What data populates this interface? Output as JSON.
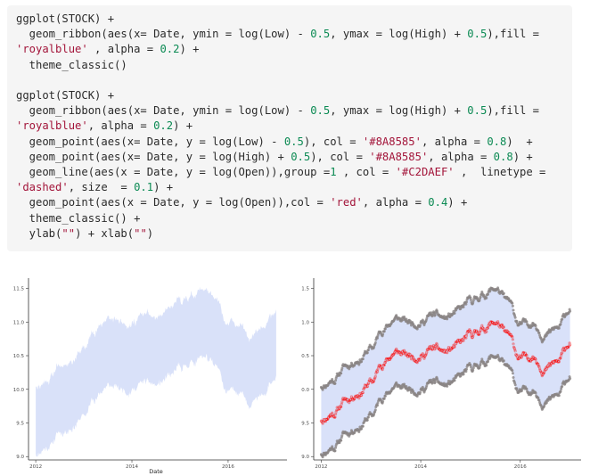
{
  "code": {
    "lines": [
      [
        [
          "t",
          "ggplot(STOCK) +"
        ]
      ],
      [
        [
          "t",
          "  geom_ribbon(aes(x= Date, ymin = log(Low) - "
        ],
        [
          "n",
          "0.5"
        ],
        [
          "t",
          ", ymax = log(High) + "
        ],
        [
          "n",
          "0.5"
        ],
        [
          "t",
          "),fill ="
        ]
      ],
      [
        [
          "s",
          "'royalblue'"
        ],
        [
          "t",
          " , alpha = "
        ],
        [
          "n",
          "0.2"
        ],
        [
          "t",
          ") +"
        ]
      ],
      [
        [
          "t",
          "  theme_classic()"
        ]
      ],
      [
        [
          "t",
          ""
        ]
      ],
      [
        [
          "t",
          "ggplot(STOCK) +"
        ]
      ],
      [
        [
          "t",
          "  geom_ribbon(aes(x= Date, ymin = log(Low) - "
        ],
        [
          "n",
          "0.5"
        ],
        [
          "t",
          ", ymax = log(High) + "
        ],
        [
          "n",
          "0.5"
        ],
        [
          "t",
          "),fill ="
        ]
      ],
      [
        [
          "s",
          "'royalblue'"
        ],
        [
          "t",
          ", alpha = "
        ],
        [
          "n",
          "0.2"
        ],
        [
          "t",
          ") +"
        ]
      ],
      [
        [
          "t",
          "  geom_point(aes(x= Date, y = log(Low) - "
        ],
        [
          "n",
          "0.5"
        ],
        [
          "t",
          "), col = "
        ],
        [
          "s",
          "'#8A8585'"
        ],
        [
          "t",
          ", alpha = "
        ],
        [
          "n",
          "0.8"
        ],
        [
          "t",
          ")  +"
        ]
      ],
      [
        [
          "t",
          "  geom_point(aes(x= Date, y = log(High) + "
        ],
        [
          "n",
          "0.5"
        ],
        [
          "t",
          "), col = "
        ],
        [
          "s",
          "'#8A8585'"
        ],
        [
          "t",
          ", alpha = "
        ],
        [
          "n",
          "0.8"
        ],
        [
          "t",
          ") +"
        ]
      ],
      [
        [
          "t",
          "  geom_line(aes(x = Date, y = log(Open)),group ="
        ],
        [
          "n",
          "1"
        ],
        [
          "t",
          " , col = "
        ],
        [
          "s",
          "'#C2DAEF'"
        ],
        [
          "t",
          " ,  linetype ="
        ]
      ],
      [
        [
          "s",
          "'dashed'"
        ],
        [
          "t",
          ", size  = "
        ],
        [
          "n",
          "0.1"
        ],
        [
          "t",
          ") +"
        ]
      ],
      [
        [
          "t",
          "  geom_point(aes(x = Date, y = log(Open)),col = "
        ],
        [
          "s",
          "'red'"
        ],
        [
          "t",
          ", alpha = "
        ],
        [
          "n",
          "0.4"
        ],
        [
          "t",
          ") +"
        ]
      ],
      [
        [
          "t",
          "  theme_classic() +"
        ]
      ],
      [
        [
          "t",
          "  ylab("
        ],
        [
          "s",
          "\"\""
        ],
        [
          "t",
          ") + xlab("
        ],
        [
          "s",
          "\"\""
        ],
        [
          "t",
          ")"
        ]
      ]
    ]
  },
  "plots": {
    "y_tick_labels": [
      "9.0",
      "9.5",
      "10.0",
      "10.5",
      "11.0",
      "11.5"
    ],
    "x_tick_labels": [
      "2012",
      "2014",
      "2016"
    ],
    "left_xlabel": "Date",
    "ribbon_color": "#4169e1",
    "ribbon_alpha": 0.2,
    "band_point_color": "#8A8585",
    "open_point_color": "#ff0000",
    "open_line_color": "#C2DAEF"
  },
  "chart_data": [
    {
      "type": "area",
      "title": "",
      "xlabel": "Date",
      "ylabel": "",
      "xlim": [
        2011.85,
        2017.15
      ],
      "ylim": [
        8.95,
        11.6
      ],
      "x": [
        2012.0,
        2012.25,
        2012.5,
        2012.75,
        2013.0,
        2013.25,
        2013.5,
        2013.75,
        2014.0,
        2014.25,
        2014.5,
        2014.75,
        2015.0,
        2015.25,
        2015.5,
        2015.75,
        2016.0,
        2016.25,
        2016.5,
        2016.75,
        2017.0
      ],
      "series": [
        {
          "values_low": [
            9.05,
            9.15,
            9.35,
            9.45,
            9.6,
            9.9,
            10.05,
            10.0,
            10.0,
            10.1,
            10.05,
            10.15,
            10.3,
            10.4,
            10.5,
            10.3,
            9.95,
            10.0,
            9.8,
            9.9,
            10.2
          ]
        },
        {
          "values_high": [
            10.05,
            10.15,
            10.35,
            10.45,
            10.6,
            10.9,
            11.05,
            11.0,
            11.0,
            11.1,
            11.05,
            11.15,
            11.3,
            11.4,
            11.5,
            11.3,
            10.95,
            11.0,
            10.8,
            10.9,
            11.2
          ]
        }
      ]
    },
    {
      "type": "scatter",
      "title": "",
      "xlabel": "",
      "ylabel": "",
      "xlim": [
        2011.85,
        2017.15
      ],
      "ylim": [
        8.95,
        11.6
      ],
      "x": [
        2012.0,
        2012.25,
        2012.5,
        2012.75,
        2013.0,
        2013.25,
        2013.5,
        2013.75,
        2014.0,
        2014.25,
        2014.5,
        2014.75,
        2015.0,
        2015.25,
        2015.5,
        2015.75,
        2016.0,
        2016.25,
        2016.5,
        2016.75,
        2017.0
      ],
      "series": [
        {
          "values": [
            9.05,
            9.15,
            9.35,
            9.45,
            9.6,
            9.9,
            10.05,
            10.0,
            10.0,
            10.1,
            10.05,
            10.15,
            10.3,
            10.4,
            10.5,
            10.3,
            9.95,
            10.0,
            9.8,
            9.9,
            10.2
          ]
        },
        {
          "values": [
            10.05,
            10.15,
            10.35,
            10.45,
            10.6,
            10.9,
            11.05,
            11.0,
            11.0,
            11.1,
            11.05,
            11.15,
            11.3,
            11.4,
            11.5,
            11.3,
            10.95,
            11.0,
            10.8,
            10.9,
            11.2
          ]
        },
        {
          "values": [
            9.55,
            9.65,
            9.85,
            9.95,
            10.1,
            10.4,
            10.55,
            10.5,
            10.5,
            10.6,
            10.55,
            10.65,
            10.8,
            10.9,
            11.0,
            10.8,
            10.45,
            10.5,
            10.3,
            10.4,
            10.7
          ]
        }
      ]
    }
  ]
}
